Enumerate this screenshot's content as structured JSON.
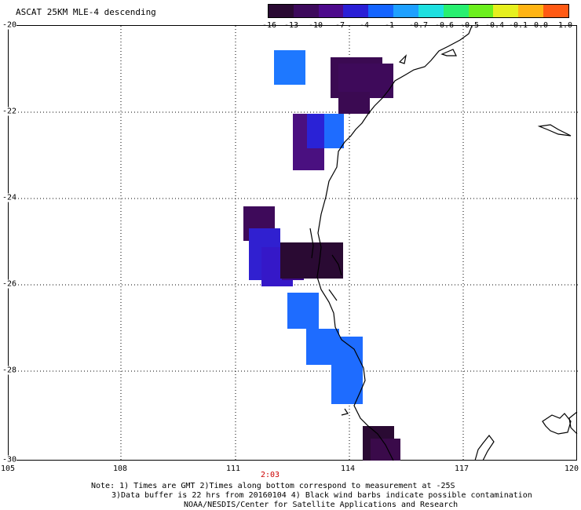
{
  "title": "ASCAT 25KM MLE-4 descending",
  "colorbar": {
    "labels": [
      "-16",
      "-13",
      "-10",
      "-7",
      "-4",
      "-1",
      "-0.7",
      "-0.6",
      "-0.5",
      "-0.4",
      "-0.1",
      "0.0",
      "1.0"
    ],
    "colors": [
      "#2a0a33",
      "#3d0a5c",
      "#4d0a8c",
      "#2a1fd6",
      "#1464ff",
      "#1ea0ff",
      "#1ee0e0",
      "#28f070",
      "#6cf01e",
      "#e6f01e",
      "#ffb414",
      "#ff5a14",
      "#ff1e14"
    ]
  },
  "axes": {
    "x_ticks": [
      "105",
      "108",
      "111",
      "114",
      "117",
      "120"
    ],
    "y_ticks": [
      "-20",
      "-22",
      "-24",
      "-26",
      "-28",
      "-30"
    ]
  },
  "time_label": "2:03",
  "notes": {
    "line1": "Note: 1) Times are GMT 2)Times along bottom correspond to measurement at -25S",
    "line2": "3)Data buffer is 22 hrs from 20160104 4) Black wind barbs indicate possible contamination",
    "line3": "NOAA/NESDIS/Center for Satellite Applications and Research"
  }
}
